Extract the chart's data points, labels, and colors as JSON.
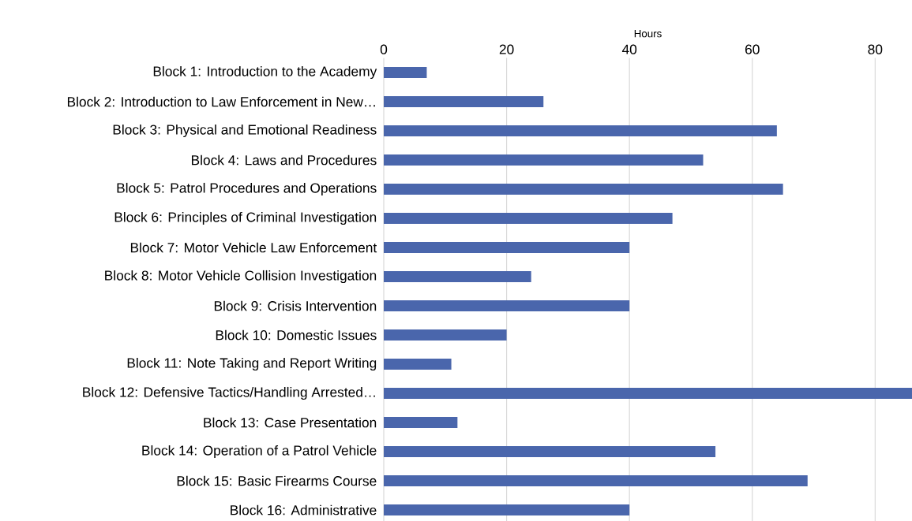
{
  "chart_data": {
    "type": "bar",
    "orientation": "horizontal",
    "xlabel": "Hours",
    "categories": [
      "Block 1: Introduction to the Academy",
      "Block 2: Introduction to Law Enforcement in New…",
      "Block 3: Physical and Emotional Readiness",
      "Block 4: Laws and Procedures",
      "Block 5: Patrol Procedures and Operations",
      "Block 6: Principles of Criminal Investigation",
      "Block 7: Motor Vehicle Law Enforcement",
      "Block 8: Motor Vehicle Collision Investigation",
      "Block 9: Crisis Intervention",
      "Block 10: Domestic Issues",
      "Block 11: Note Taking and Report Writing",
      "Block 12: Defensive Tactics/Handling Arrested…",
      "Block 13: Case Presentation",
      "Block 14: Operation of a Patrol Vehicle",
      "Block 15: Basic Firearms Course",
      "Block 16: Administrative"
    ],
    "values": [
      7,
      26,
      64,
      52,
      65,
      47,
      40,
      24,
      40,
      20,
      11,
      86,
      12,
      54,
      69,
      40
    ],
    "color": "#4a66ac",
    "xlim": [
      0,
      86
    ],
    "xticks": [
      0,
      20,
      40,
      60,
      80
    ],
    "grid": "x"
  }
}
